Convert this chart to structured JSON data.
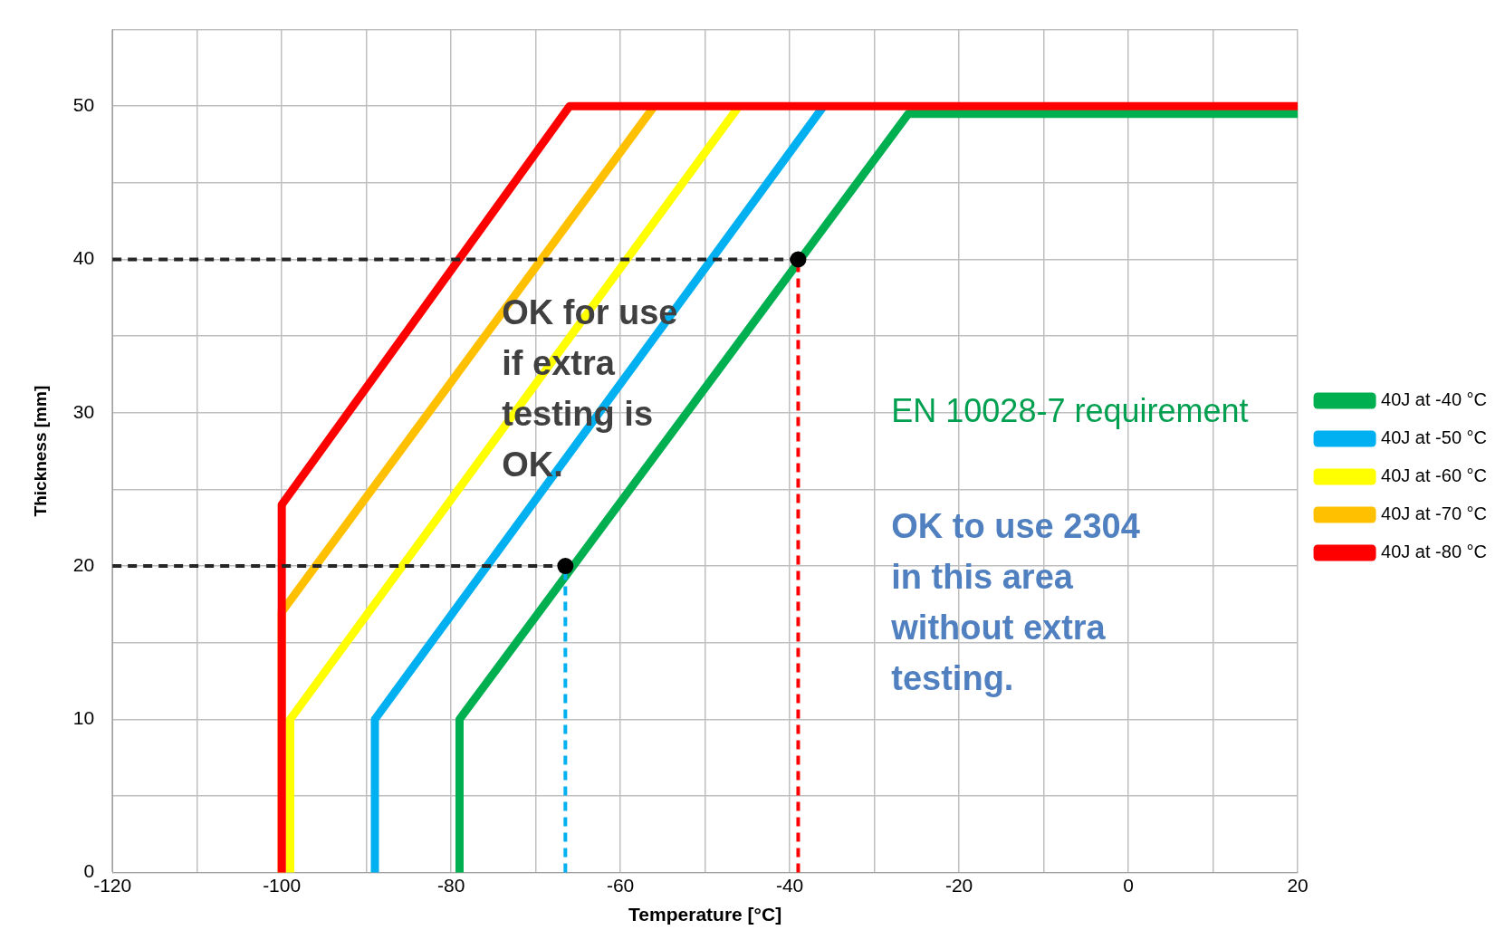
{
  "chart_data": {
    "type": "line",
    "xlabel": "Temperature [°C]",
    "ylabel": "Thickness [mm]",
    "xlim": [
      -120,
      20
    ],
    "xticks": [
      -120,
      {
        "value": -110,
        "label": null
      },
      -100,
      {
        "value": -90,
        "label": null
      },
      -80,
      {
        "value": -70,
        "label": null
      },
      -60,
      {
        "value": -50,
        "label": null
      },
      -40,
      {
        "value": -30,
        "label": null
      },
      -20,
      {
        "value": -10,
        "label": null
      },
      0,
      {
        "value": 10,
        "label": null
      },
      20
    ],
    "ylim": [
      0,
      55
    ],
    "yticks": [
      0,
      {
        "value": 5,
        "label": null
      },
      10,
      {
        "value": 15,
        "label": null
      },
      20,
      {
        "value": 25,
        "label": null
      },
      30,
      {
        "value": 35,
        "label": null
      },
      40,
      {
        "value": 45,
        "label": null
      },
      50,
      {
        "value": 55,
        "label": null
      }
    ],
    "grid": true,
    "legend": "right",
    "marker": "none",
    "line_style": "solid",
    "series": [
      {
        "name": "40J at -40 °C",
        "color": "#00b050",
        "x": [
          -79,
          -79,
          -26,
          20
        ],
        "values": [
          0,
          10,
          49.5,
          49.5
        ]
      },
      {
        "name": "40J at -50 °C",
        "color": "#00b0f0",
        "x": [
          -89,
          -89,
          -36
        ],
        "values": [
          0,
          10,
          50
        ]
      },
      {
        "name": "40J at -60 °C",
        "color": "#ffff00",
        "x": [
          -99,
          -99,
          -46
        ],
        "values": [
          0,
          10,
          50
        ]
      },
      {
        "name": "40J at -70 °C",
        "color": "#ffc000",
        "x": [
          -100,
          -100,
          -56
        ],
        "values": [
          0,
          17,
          50
        ]
      },
      {
        "name": "40J at -80 °C",
        "color": "#ff0000",
        "x": [
          -100,
          -100,
          -66,
          20
        ],
        "values": [
          0,
          24,
          50,
          50
        ]
      },
      {
        "color": "#262626",
        "line_style": "dashed",
        "x": [
          -120,
          -39
        ],
        "values": [
          40,
          40
        ]
      },
      {
        "color": "#262626",
        "line_style": "dashed",
        "x": [
          -120,
          -66.5
        ],
        "values": [
          20,
          20
        ]
      },
      {
        "color": "#ff0000",
        "line_style": "dashed",
        "x": [
          -39,
          -39
        ],
        "values": [
          0,
          40
        ]
      },
      {
        "color": "#00b0f0",
        "line_style": "dashed",
        "x": [
          -66.5,
          -66.5
        ],
        "values": [
          0,
          20
        ]
      },
      {
        "type": "scatter",
        "marker": "circle",
        "color": "#000000",
        "x": [
          -39,
          -66.5
        ],
        "values": [
          40,
          20
        ]
      }
    ],
    "annotations": [
      "OK for use if extra testing is OK.",
      "EN 10028-7 requirement",
      "OK to use 2304 in this area without extra testing."
    ]
  }
}
